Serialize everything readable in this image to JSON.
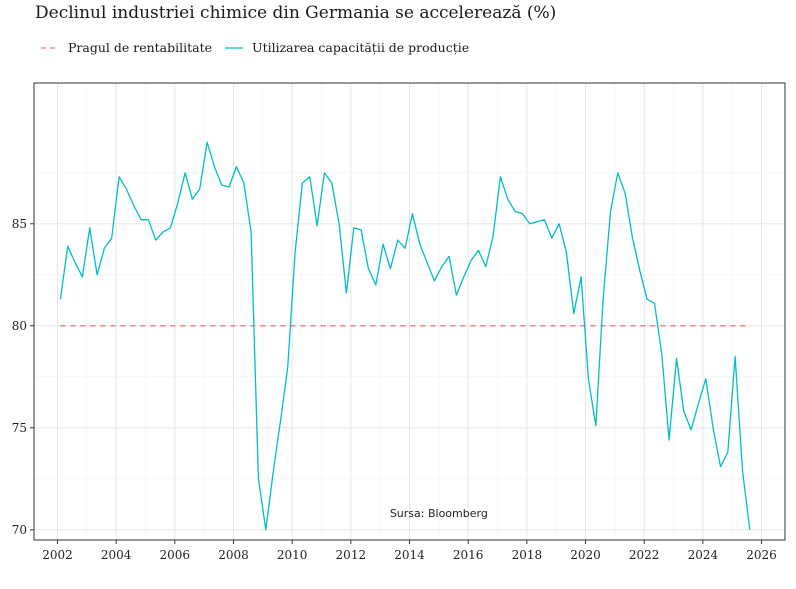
{
  "chart_data": {
    "type": "line",
    "title": "Declinul industriei chimice din Germania se accelerează (%)",
    "source": "Sursa: Bloomberg",
    "xlabel": "",
    "ylabel": "",
    "xlim": [
      2001.2,
      2026.8
    ],
    "ylim": [
      69.5,
      91.9
    ],
    "x_ticks": [
      2002,
      2004,
      2006,
      2008,
      2010,
      2012,
      2014,
      2016,
      2018,
      2020,
      2022,
      2024,
      2026
    ],
    "x_tick_labels": [
      "2002",
      "2004",
      "2006",
      "2008",
      "2010",
      "2012",
      "2014",
      "2016",
      "2018",
      "2020",
      "2022",
      "2024",
      "2026"
    ],
    "y_ticks": [
      70,
      75,
      80,
      85
    ],
    "y_tick_labels": [
      "70",
      "75",
      "80",
      "85"
    ],
    "grid": true,
    "legend_position": "top-left",
    "series": [
      {
        "name": "Pragul de rentabilitate",
        "color": "#f8766d",
        "dash": "dashed",
        "x": [
          2002.1,
          2025.6
        ],
        "values": [
          80,
          80
        ]
      },
      {
        "name": "Utilizarea capacității de producție",
        "color": "#00bfc4",
        "dash": "solid",
        "x": [
          2002.1,
          2002.35,
          2002.6,
          2002.85,
          2003.1,
          2003.35,
          2003.6,
          2003.85,
          2004.1,
          2004.35,
          2004.6,
          2004.85,
          2005.1,
          2005.35,
          2005.6,
          2005.85,
          2006.1,
          2006.35,
          2006.6,
          2006.85,
          2007.1,
          2007.35,
          2007.6,
          2007.85,
          2008.1,
          2008.35,
          2008.6,
          2008.85,
          2009.1,
          2009.35,
          2009.6,
          2009.85,
          2010.1,
          2010.35,
          2010.6,
          2010.85,
          2011.1,
          2011.35,
          2011.6,
          2011.85,
          2012.1,
          2012.35,
          2012.6,
          2012.85,
          2013.1,
          2013.35,
          2013.6,
          2013.85,
          2014.1,
          2014.35,
          2014.6,
          2014.85,
          2015.1,
          2015.35,
          2015.6,
          2015.85,
          2016.1,
          2016.35,
          2016.6,
          2016.85,
          2017.1,
          2017.35,
          2017.6,
          2017.85,
          2018.1,
          2018.35,
          2018.6,
          2018.85,
          2019.1,
          2019.35,
          2019.6,
          2019.85,
          2020.1,
          2020.35,
          2020.6,
          2020.85,
          2021.1,
          2021.35,
          2021.6,
          2021.85,
          2022.1,
          2022.35,
          2022.6,
          2022.85,
          2023.1,
          2023.35,
          2023.6,
          2023.85,
          2024.1,
          2024.35,
          2024.6,
          2024.85,
          2025.1,
          2025.35,
          2025.6
        ],
        "values": [
          81.3,
          83.9,
          83.1,
          82.4,
          84.8,
          82.5,
          83.8,
          84.3,
          87.3,
          86.7,
          85.9,
          85.2,
          85.2,
          84.2,
          84.6,
          84.8,
          86.0,
          87.5,
          86.2,
          86.7,
          89.0,
          87.8,
          86.9,
          86.8,
          87.8,
          87.0,
          84.6,
          72.5,
          70.0,
          72.8,
          75.3,
          78.0,
          83.6,
          87.0,
          87.3,
          84.9,
          87.5,
          87.0,
          85.0,
          81.6,
          84.8,
          84.7,
          82.8,
          82.0,
          84.0,
          82.8,
          84.2,
          83.8,
          85.5,
          84.0,
          83.1,
          82.2,
          82.9,
          83.4,
          81.5,
          82.4,
          83.2,
          83.7,
          82.9,
          84.4,
          87.3,
          86.2,
          85.6,
          85.5,
          85.0,
          85.1,
          85.2,
          84.3,
          85.0,
          83.6,
          80.6,
          82.4,
          77.4,
          75.1,
          81.3,
          85.6,
          87.5,
          86.5,
          84.3,
          82.7,
          81.3,
          81.1,
          78.6,
          74.4,
          78.4,
          75.8,
          74.9,
          76.2,
          77.4,
          75.0,
          73.1,
          73.8,
          78.5,
          72.9,
          70.0
        ]
      }
    ]
  }
}
